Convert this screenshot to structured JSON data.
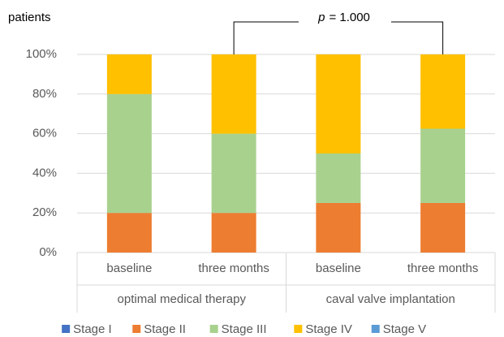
{
  "chart_data": {
    "type": "stacked_bar",
    "y_axis_label": "patients",
    "annotation": {
      "symbol": "p",
      "text": "= 1.000"
    },
    "categories": [
      "baseline",
      "three months",
      "baseline",
      "three months"
    ],
    "groups": [
      {
        "name": "optimal medical therapy",
        "size": 2
      },
      {
        "name": "caval valve implantation",
        "size": 2
      }
    ],
    "series": [
      {
        "name": "Stage I",
        "color": "#4472c4",
        "values": [
          0,
          0,
          0,
          0
        ]
      },
      {
        "name": "Stage II",
        "color": "#ed7d31",
        "values": [
          20,
          20,
          25,
          25
        ]
      },
      {
        "name": "Stage III",
        "color": "#a9d18e",
        "values": [
          60,
          40,
          25,
          37.5
        ]
      },
      {
        "name": "Stage IV",
        "color": "#ffc000",
        "values": [
          20,
          40,
          50,
          37.5
        ]
      },
      {
        "name": "Stage V",
        "color": "#5b9bd5",
        "values": [
          0,
          0,
          0,
          0
        ]
      }
    ],
    "ylim": [
      0,
      100
    ],
    "yticks": [
      {
        "value": 0,
        "label": "0%"
      },
      {
        "value": 20,
        "label": "20%"
      },
      {
        "value": 40,
        "label": "40%"
      },
      {
        "value": 60,
        "label": "60%"
      },
      {
        "value": 80,
        "label": "80%"
      },
      {
        "value": 100,
        "label": "100%"
      }
    ],
    "grid": true,
    "legend": "bottom"
  }
}
